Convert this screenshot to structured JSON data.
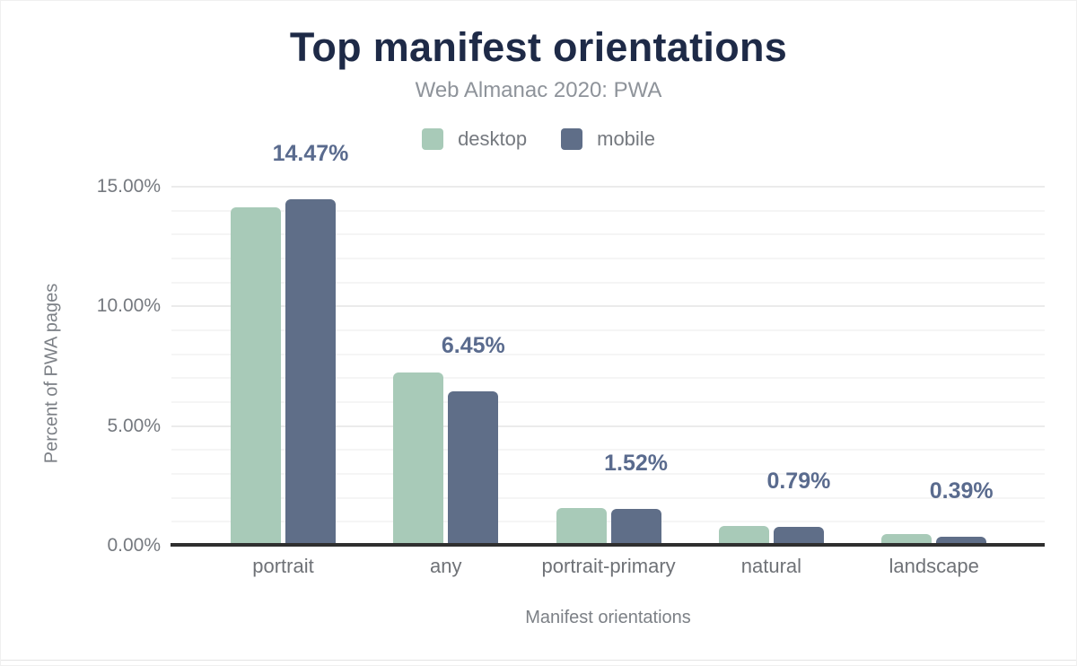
{
  "figure": {
    "title": "Top manifest orientations",
    "subtitle": "Web Almanac 2020: PWA",
    "x_axis_title": "Manifest orientations",
    "y_axis_title": "Percent of PWA pages"
  },
  "chart_data": {
    "type": "bar",
    "title": "Top manifest orientations",
    "subtitle": "Web Almanac 2020: PWA",
    "xlabel": "Manifest orientations",
    "ylabel": "Percent of PWA pages",
    "categories": [
      "portrait",
      "any",
      "portrait-primary",
      "natural",
      "landscape"
    ],
    "series": [
      {
        "name": "desktop",
        "color": "#a8cab8",
        "values": [
          14.13,
          7.25,
          1.57,
          0.81,
          0.48
        ]
      },
      {
        "name": "mobile",
        "color": "#5f6e88",
        "values": [
          14.47,
          6.45,
          1.52,
          0.79,
          0.39
        ]
      }
    ],
    "data_labels": {
      "labeled_series": "mobile",
      "values": [
        "14.47%",
        "6.45%",
        "1.52%",
        "0.79%",
        "0.39%"
      ]
    },
    "y_ticks": [
      {
        "label": "0.00%",
        "value": 0
      },
      {
        "label": "5.00%",
        "value": 5
      },
      {
        "label": "10.00%",
        "value": 10
      },
      {
        "label": "15.00%",
        "value": 15
      }
    ],
    "ylim": [
      0,
      15
    ],
    "grid": {
      "orientation": "horizontal",
      "minor_step_pct": 1,
      "major_step_pct": 5
    },
    "legend_position": "top-center"
  },
  "colors": {
    "title_text": "#1e2a47",
    "subtitle_text": "#8e939a",
    "axis_text": "#75797f",
    "data_label_text": "#5a6b8e",
    "axis_line": "#2f2f2f",
    "grid_major": "#ebebeb",
    "grid_minor": "#f5f5f5",
    "desktop_bar": "#a8cab8",
    "mobile_bar": "#5f6e88"
  }
}
